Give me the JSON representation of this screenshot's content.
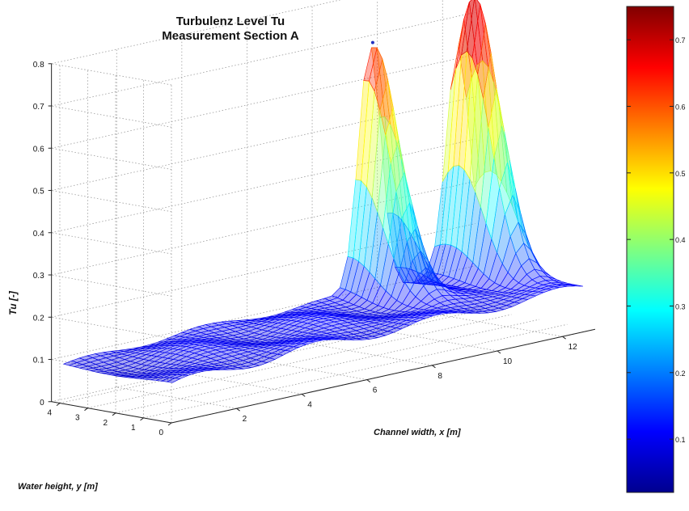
{
  "chart_data": {
    "type": "surface3d",
    "title": [
      "Turbulenz Level Tu",
      "Measurement Section A"
    ],
    "zlabel": "Tu [-]",
    "xlabel": "Channel width, x [m]",
    "ylabel": "Water height, y [m]",
    "x_ticks": [
      "2",
      "4",
      "6",
      "8",
      "10",
      "12"
    ],
    "y_ticks": [
      "0",
      "1",
      "2",
      "3",
      "4"
    ],
    "z_ticks": [
      "0",
      "0.1",
      "0.2",
      "0.3",
      "0.4",
      "0.5",
      "0.6",
      "0.7",
      "0.8"
    ],
    "xlim": [
      0,
      13
    ],
    "ylim": [
      0,
      4.3
    ],
    "zlim": [
      0,
      0.8
    ],
    "grid": true,
    "colormap": "jet",
    "colorbar": {
      "ticks": [
        "0.1",
        "0.2",
        "0.3",
        "0.4",
        "0.5",
        "0.6",
        "0.7"
      ],
      "range": [
        0.02,
        0.75
      ]
    },
    "surface": {
      "baseline_tu": 0.1,
      "peaks": [
        {
          "x": 9.6,
          "y": 4.0,
          "tu": 0.69
        },
        {
          "x": 12.3,
          "y": 3.5,
          "tu": 0.76
        }
      ]
    }
  }
}
